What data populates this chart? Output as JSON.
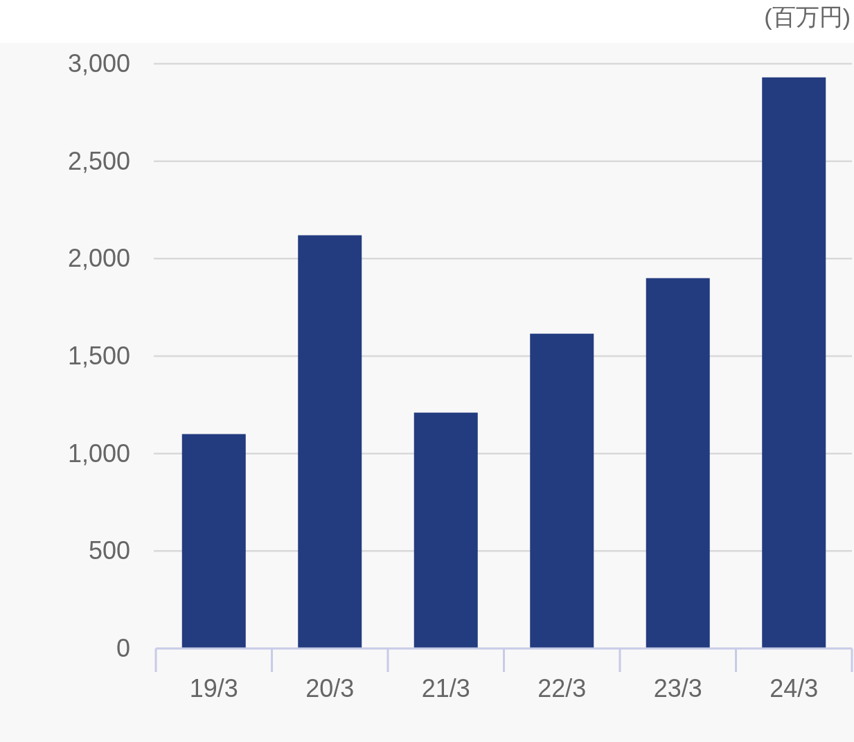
{
  "chart_data": {
    "type": "bar",
    "ylabel": "(百万円)",
    "categories": [
      "19/3",
      "20/3",
      "21/3",
      "22/3",
      "23/3",
      "24/3"
    ],
    "values": [
      1100,
      2120,
      1210,
      1615,
      1900,
      2930
    ],
    "color": "#233b7f",
    "ylim": [
      0,
      3000
    ],
    "yticks": [
      0,
      {
        "value": 500,
        "label": "500"
      },
      {
        "value": 1000,
        "label": "1,000"
      },
      {
        "value": 1500,
        "label": "1,500"
      },
      {
        "value": 2000,
        "label": "2,000"
      },
      {
        "value": 2500,
        "label": "2,500"
      },
      {
        "value": 3000,
        "label": "3,000"
      }
    ],
    "grid": "y"
  }
}
